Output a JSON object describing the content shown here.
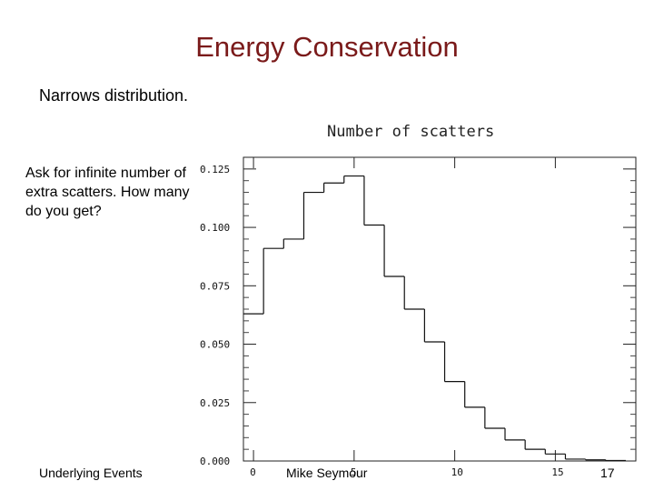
{
  "slide": {
    "title": "Energy Conservation",
    "bullet": "Narrows distribution.",
    "side_text": "Ask for infinite number of extra scatters.  How many do you get?",
    "footer_left": "Underlying Events",
    "footer_center": "Mike Seymour",
    "page_number": "17"
  },
  "chart_data": {
    "type": "bar",
    "title": "Number of scatters",
    "xlabel": "",
    "ylabel": "",
    "xlim": [
      -0.5,
      19
    ],
    "ylim": [
      0,
      0.13
    ],
    "x_ticks": [
      "0",
      "5",
      "10",
      "15"
    ],
    "x_tick_values": [
      0,
      5,
      10,
      15
    ],
    "y_ticks": [
      "0.000",
      "0.025",
      "0.050",
      "0.075",
      "0.100",
      "0.125"
    ],
    "y_tick_values": [
      0,
      0.025,
      0.05,
      0.075,
      0.1,
      0.125
    ],
    "bins": [
      0,
      1,
      2,
      3,
      4,
      5,
      6,
      7,
      8,
      9,
      10,
      11,
      12,
      13,
      14,
      15,
      16,
      17,
      18
    ],
    "values": [
      0.063,
      0.091,
      0.095,
      0.115,
      0.119,
      0.122,
      0.101,
      0.079,
      0.065,
      0.051,
      0.034,
      0.023,
      0.014,
      0.009,
      0.005,
      0.003,
      0.0008,
      0.0005,
      0.0002
    ],
    "grid": false
  }
}
